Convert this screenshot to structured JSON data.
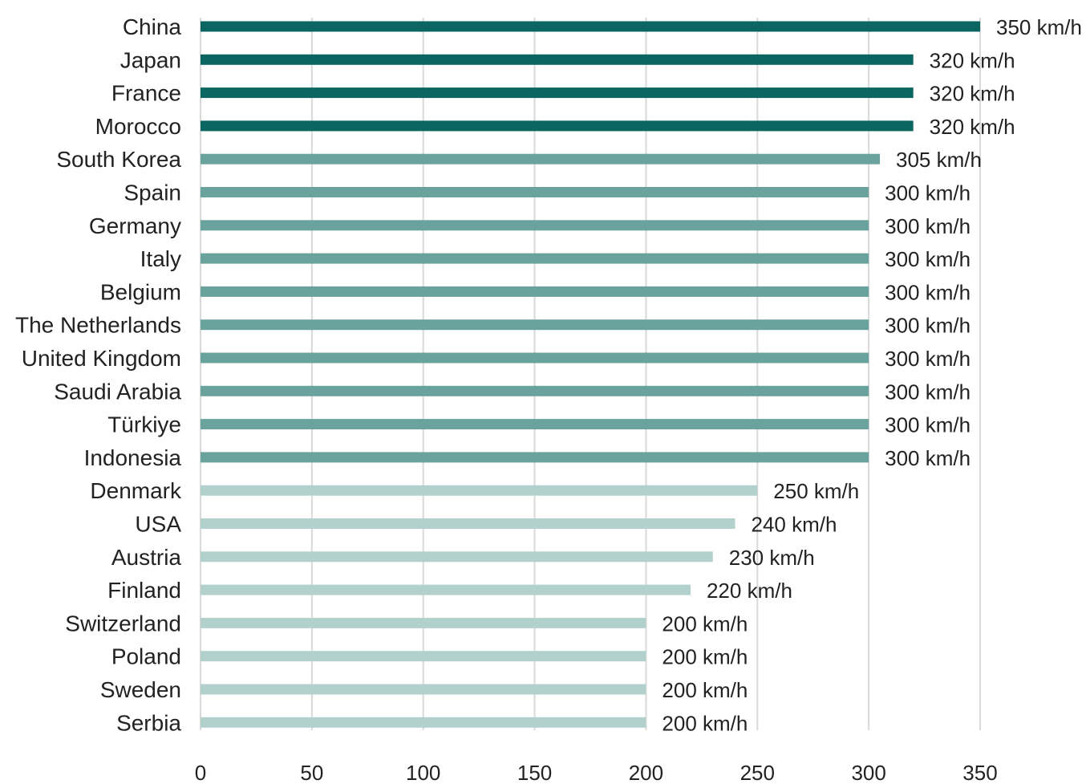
{
  "chart_data": {
    "type": "bar",
    "orientation": "horizontal",
    "categories": [
      "China",
      "Japan",
      "France",
      "Morocco",
      "South Korea",
      "Spain",
      "Germany",
      "Italy",
      "Belgium",
      "The Netherlands",
      "United Kingdom",
      "Saudi Arabia",
      "Türkiye",
      "Indonesia",
      "Denmark",
      "USA",
      "Austria",
      "Finland",
      "Switzerland",
      "Poland",
      "Sweden",
      "Serbia"
    ],
    "values": [
      350,
      320,
      320,
      320,
      305,
      300,
      300,
      300,
      300,
      300,
      300,
      300,
      300,
      300,
      250,
      240,
      230,
      220,
      200,
      200,
      200,
      200
    ],
    "value_labels": [
      "350 km/h",
      "320 km/h",
      "320 km/h",
      "320 km/h",
      "305 km/h",
      "300 km/h",
      "300 km/h",
      "300 km/h",
      "300 km/h",
      "300 km/h",
      "300 km/h",
      "300 km/h",
      "300 km/h",
      "300 km/h",
      "250 km/h",
      "240 km/h",
      "230 km/h",
      "220 km/h",
      "200 km/h",
      "200 km/h",
      "200 km/h",
      "200 km/h"
    ],
    "bar_colors": [
      "#0b6560",
      "#0b6560",
      "#0b6560",
      "#0b6560",
      "#6aa39d",
      "#6aa39d",
      "#6aa39d",
      "#6aa39d",
      "#6aa39d",
      "#6aa39d",
      "#6aa39d",
      "#6aa39d",
      "#6aa39d",
      "#6aa39d",
      "#b2d1cd",
      "#b2d1cd",
      "#b2d1cd",
      "#b2d1cd",
      "#b2d1cd",
      "#b2d1cd",
      "#b2d1cd",
      "#b2d1cd"
    ],
    "xlim": [
      0,
      350
    ],
    "xticks": [
      0,
      50,
      100,
      150,
      200,
      250,
      300,
      350
    ],
    "grid": "vertical",
    "grid_color": "#d9d9d9",
    "title": "",
    "xlabel": "",
    "ylabel": ""
  }
}
